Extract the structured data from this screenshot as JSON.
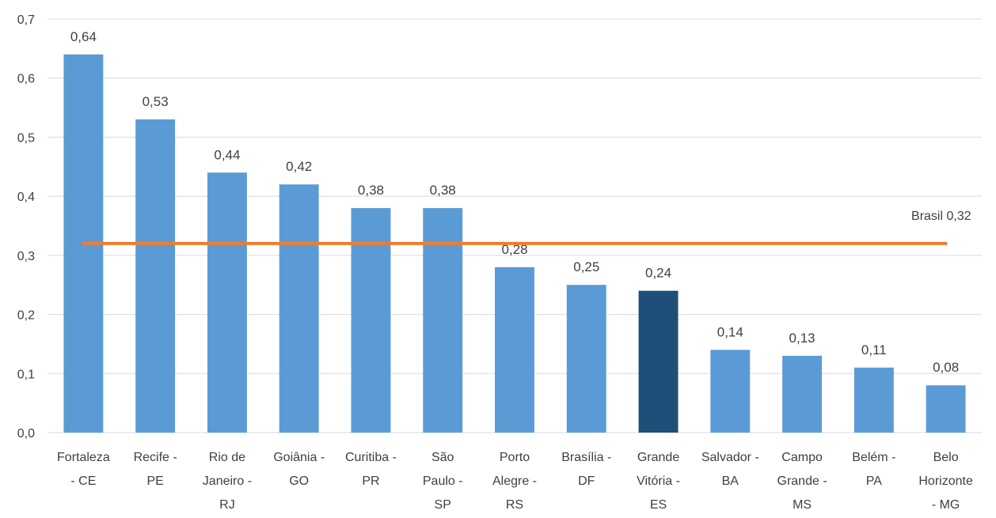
{
  "chart_data": {
    "type": "bar",
    "categories": [
      [
        "Fortaleza",
        "- CE"
      ],
      [
        "Recife -",
        "PE"
      ],
      [
        "Rio de",
        "Janeiro -",
        "RJ"
      ],
      [
        "Goiânia -",
        "GO"
      ],
      [
        "Curitiba -",
        "PR"
      ],
      [
        "São",
        "Paulo -",
        "SP"
      ],
      [
        "Porto",
        "Alegre -",
        "RS"
      ],
      [
        "Brasília -",
        "DF"
      ],
      [
        "Grande",
        "Vitória -",
        "ES"
      ],
      [
        "Salvador -",
        "BA"
      ],
      [
        "Campo",
        "Grande -",
        "MS"
      ],
      [
        "Belém -",
        "PA"
      ],
      [
        "Belo",
        "Horizonte",
        "- MG"
      ]
    ],
    "values": [
      0.64,
      0.53,
      0.44,
      0.42,
      0.38,
      0.38,
      0.28,
      0.25,
      0.24,
      0.14,
      0.13,
      0.11,
      0.08
    ],
    "data_labels": [
      "0,64",
      "0,53",
      "0,44",
      "0,42",
      "0,38",
      "0,38",
      "0,28",
      "0,25",
      "0,24",
      "0,14",
      "0,13",
      "0,11",
      "0,08"
    ],
    "highlight_index": 8,
    "ylim": [
      0,
      0.7
    ],
    "yticks": [
      0,
      0.1,
      0.2,
      0.3,
      0.4,
      0.5,
      0.6,
      0.7
    ],
    "ytick_labels": [
      "0,0",
      "0,1",
      "0,2",
      "0,3",
      "0,4",
      "0,5",
      "0,6",
      "0,7"
    ],
    "grid": true,
    "reference_line": {
      "value": 0.32,
      "label": "Brasil 0,32"
    },
    "colors": {
      "bar": "#5b9bd5",
      "highlight": "#1f4e79",
      "line": "#ed7d31",
      "grid": "#d9d9d9",
      "text": "#404040"
    }
  }
}
